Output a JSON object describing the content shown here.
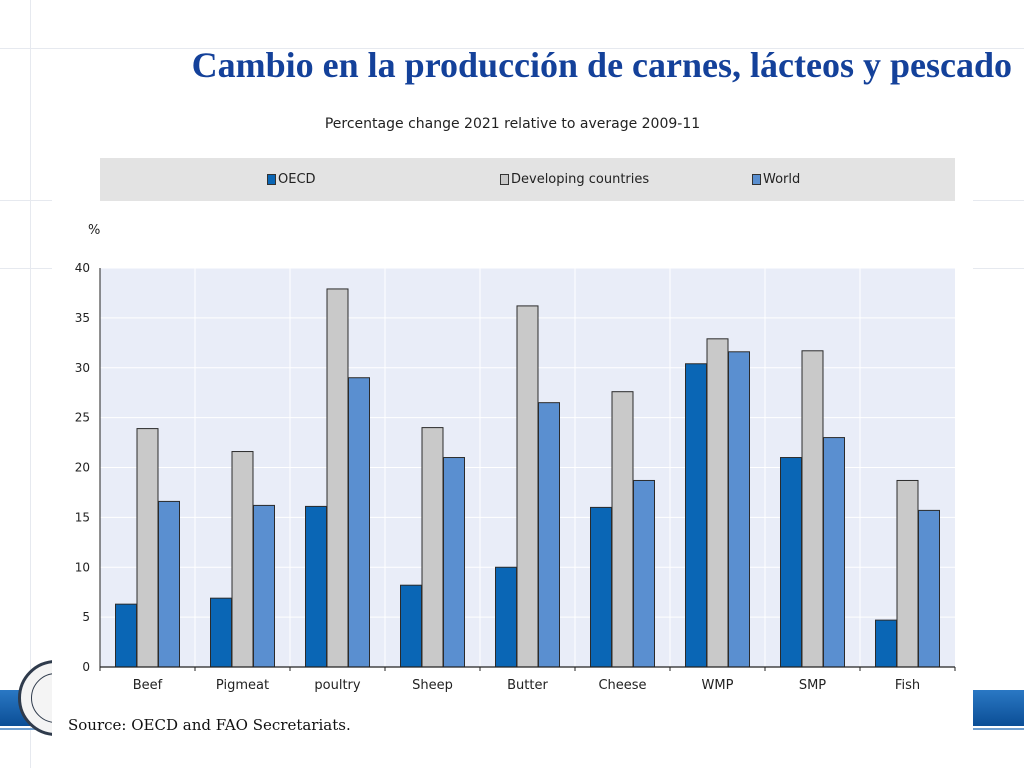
{
  "slide": {
    "title": "Cambio en la producción de carnes, lácteos y pescado"
  },
  "colors": {
    "title": "#14419a",
    "oecd": "#0a66b5",
    "developing": "#c9c9c9",
    "world": "#5a8fd0",
    "plot_bg": "#e9edf8"
  },
  "chart_data": {
    "type": "bar",
    "title": "Percentage change 2021 relative to average 2009-11",
    "ylabel": "%",
    "xlabel": "",
    "ylim": [
      0,
      40
    ],
    "yticks": [
      0,
      5,
      10,
      15,
      20,
      25,
      30,
      35,
      40
    ],
    "grid": true,
    "legend_position": "top",
    "categories": [
      "Beef",
      "Pigmeat",
      "poultry",
      "Sheep",
      "Butter",
      "Cheese",
      "WMP",
      "SMP",
      "Fish"
    ],
    "series": [
      {
        "name": "OECD",
        "color": "#0a66b5",
        "values": [
          6.3,
          6.9,
          16.1,
          8.2,
          10.0,
          16.0,
          30.4,
          21.0,
          4.7
        ]
      },
      {
        "name": "Developing countries",
        "color": "#c9c9c9",
        "values": [
          23.9,
          21.6,
          37.9,
          24.0,
          36.2,
          27.6,
          32.9,
          31.7,
          18.7
        ]
      },
      {
        "name": "World",
        "color": "#5a8fd0",
        "values": [
          16.6,
          16.2,
          29.0,
          21.0,
          26.5,
          18.7,
          31.6,
          23.0,
          15.7
        ]
      }
    ],
    "source": "Source:  OECD and FAO Secretariats."
  }
}
